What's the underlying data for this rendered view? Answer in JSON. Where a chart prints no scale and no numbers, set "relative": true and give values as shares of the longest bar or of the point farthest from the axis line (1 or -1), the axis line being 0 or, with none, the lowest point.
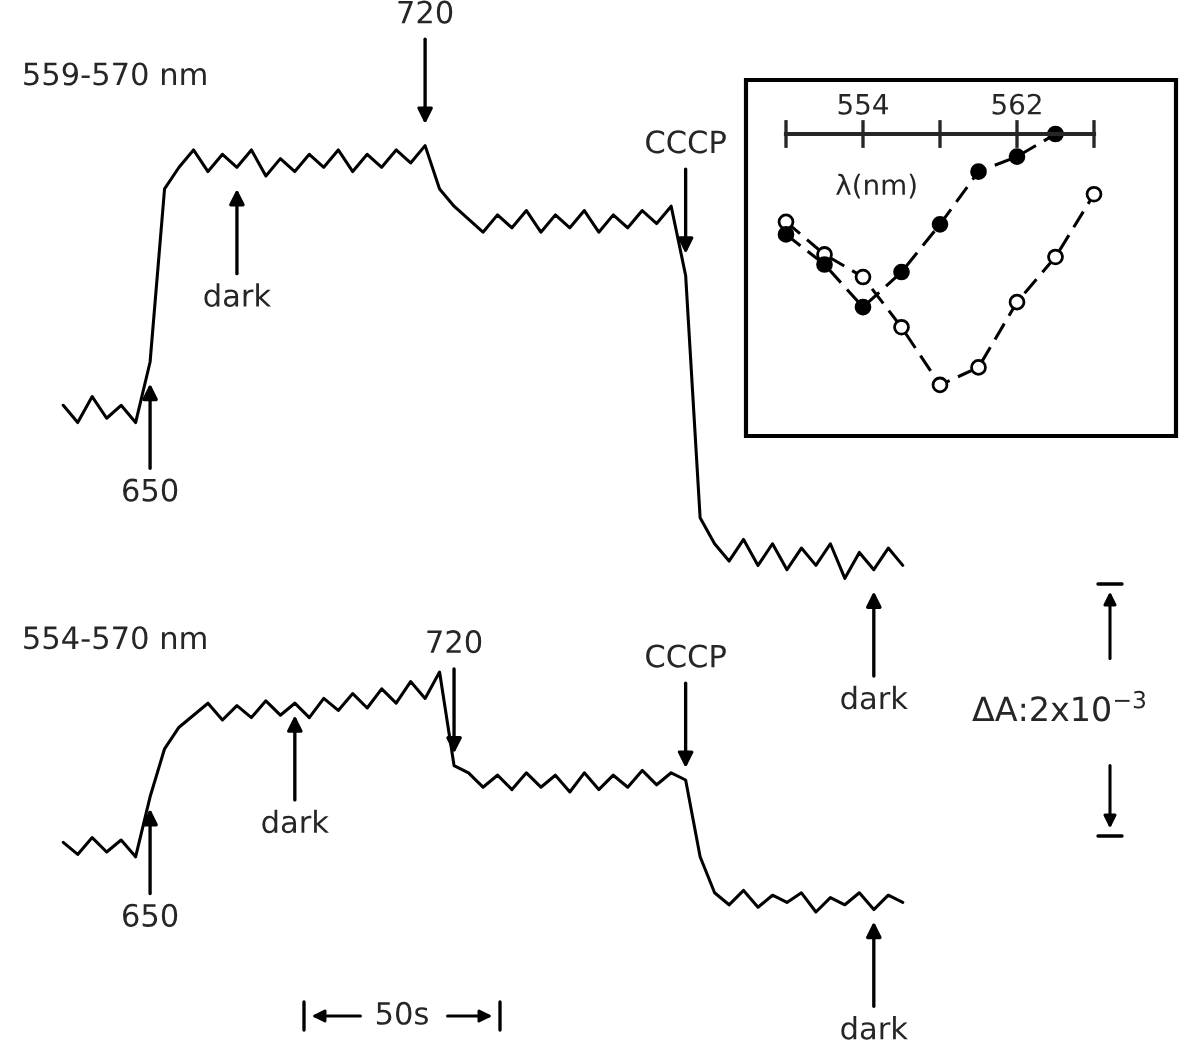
{
  "chart_data": [
    {
      "type": "line",
      "title": "559-570 nm",
      "relative": true,
      "categories": [
        null,
        null,
        null,
        null,
        null,
        null,
        null,
        null,
        null,
        null,
        null,
        null,
        null,
        null,
        null,
        null,
        null,
        null,
        null,
        null,
        null,
        null,
        null,
        null,
        null,
        null,
        null,
        null,
        null,
        null,
        null,
        null,
        null,
        null,
        null,
        null,
        null,
        null,
        null,
        null,
        null,
        null,
        null,
        null,
        null,
        null,
        null,
        null,
        null,
        null,
        null,
        null,
        null,
        null,
        null,
        null,
        null,
        null,
        null
      ],
      "series": [
        {
          "color": "#000000",
          "values": [
            0.4,
            0.36,
            0.42,
            0.37,
            0.4,
            0.36,
            0.5,
            0.9,
            0.95,
            0.99,
            0.94,
            0.98,
            0.95,
            0.99,
            0.93,
            0.97,
            0.94,
            0.98,
            0.95,
            0.99,
            0.94,
            0.98,
            0.95,
            0.99,
            0.96,
            1.0,
            0.9,
            0.86,
            0.83,
            0.8,
            0.84,
            0.81,
            0.85,
            0.8,
            0.84,
            0.81,
            0.85,
            0.8,
            0.84,
            0.81,
            0.85,
            0.82,
            0.86,
            0.7,
            0.14,
            0.08,
            0.04,
            0.09,
            0.03,
            0.08,
            0.02,
            0.07,
            0.03,
            0.08,
            0.0,
            0.06,
            0.02,
            0.07,
            0.03
          ]
        }
      ],
      "annotations": [
        "650",
        "dark",
        "720",
        "CCCP",
        "dark"
      ]
    },
    {
      "type": "line",
      "title": "554-570 nm",
      "relative": true,
      "categories": [
        null,
        null,
        null,
        null,
        null,
        null,
        null,
        null,
        null,
        null,
        null,
        null,
        null,
        null,
        null,
        null,
        null,
        null,
        null,
        null,
        null,
        null,
        null,
        null,
        null,
        null,
        null,
        null,
        null,
        null,
        null,
        null,
        null,
        null,
        null,
        null,
        null,
        null,
        null,
        null,
        null,
        null,
        null,
        null,
        null,
        null,
        null,
        null,
        null,
        null,
        null,
        null,
        null,
        null,
        null,
        null,
        null,
        null,
        null
      ],
      "series": [
        {
          "color": "#000000",
          "values": [
            0.29,
            0.24,
            0.31,
            0.25,
            0.3,
            0.23,
            0.48,
            0.68,
            0.77,
            0.82,
            0.87,
            0.8,
            0.86,
            0.81,
            0.88,
            0.82,
            0.87,
            0.81,
            0.89,
            0.84,
            0.91,
            0.85,
            0.93,
            0.87,
            0.96,
            0.89,
            1.0,
            0.61,
            0.58,
            0.52,
            0.57,
            0.51,
            0.58,
            0.52,
            0.57,
            0.5,
            0.58,
            0.51,
            0.57,
            0.52,
            0.59,
            0.53,
            0.58,
            0.55,
            0.23,
            0.08,
            0.03,
            0.09,
            0.02,
            0.07,
            0.04,
            0.08,
            0.0,
            0.06,
            0.03,
            0.08,
            0.01,
            0.07,
            0.04
          ]
        }
      ],
      "annotations": [
        "650",
        "dark",
        "720",
        "CCCP",
        "dark",
        "50s",
        "ΔA:2x10$^{−3}$"
      ]
    },
    {
      "type": "line",
      "xlabel": "λ(nm)",
      "relative": true,
      "xlim": [
        550,
        566
      ],
      "xticks": [
        {
          "value": 550,
          "label": null
        },
        554,
        {
          "value": 558,
          "label": null
        },
        562,
        {
          "value": 566,
          "label": null
        }
      ],
      "marker": "circle",
      "line_style": "dashed",
      "series": [
        {
          "color": "#ffffff",
          "x": [
            550,
            552,
            554,
            556,
            558,
            560,
            562,
            564,
            566
          ],
          "values": [
            0.65,
            0.52,
            0.43,
            0.23,
            0.0,
            0.07,
            0.33,
            0.51,
            0.76
          ]
        },
        {
          "color": "#000000",
          "x": [
            550,
            552,
            554,
            556,
            558,
            560,
            562,
            564
          ],
          "values": [
            0.6,
            0.48,
            0.31,
            0.45,
            0.64,
            0.85,
            0.91,
            1.0
          ]
        }
      ]
    }
  ]
}
